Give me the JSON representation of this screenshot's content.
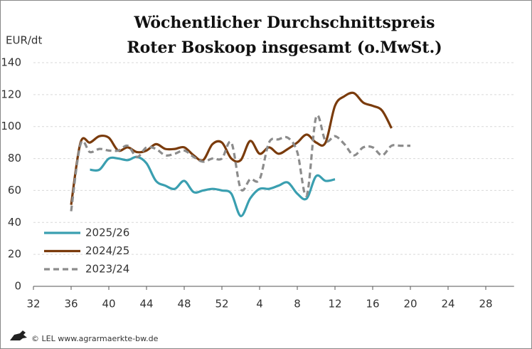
{
  "chart_data": {
    "type": "line",
    "title": [
      "Wöchentlicher Durchschnittspreis",
      "Roter Boskoop insgesamt (o.MwSt.)"
    ],
    "y_label": "EUR/dt",
    "source": "© LEL www.agrarmaerkte-bw.de",
    "categories": [
      "32",
      null,
      null,
      null,
      "36",
      null,
      null,
      null,
      "40",
      null,
      null,
      null,
      "44",
      null,
      null,
      null,
      "48",
      null,
      null,
      null,
      "52",
      null,
      null,
      null,
      "4",
      null,
      null,
      null,
      "8",
      null,
      null,
      null,
      "12",
      null,
      null,
      null,
      "16",
      null,
      null,
      null,
      "20",
      null,
      null,
      null,
      "24",
      null,
      null,
      null,
      "28",
      null,
      null,
      null
    ],
    "series": [
      {
        "name": "2025/26",
        "color": "#3a9fb0",
        "dashed": false,
        "values": [
          null,
          null,
          null,
          null,
          null,
          null,
          73,
          73,
          80,
          80,
          79,
          81,
          77,
          66,
          63,
          61,
          66,
          59,
          60,
          61,
          60,
          58,
          44,
          55,
          61,
          61,
          63,
          65,
          58,
          55,
          69,
          66,
          67,
          null,
          null,
          null,
          null,
          null,
          null,
          null,
          null,
          null,
          null,
          null,
          null,
          null,
          null,
          null,
          null,
          null,
          null,
          null
        ]
      },
      {
        "name": "2024/25",
        "color": "#7a3b0c",
        "dashed": false,
        "values": [
          null,
          null,
          null,
          null,
          51,
          90,
          90,
          94,
          93,
          85,
          87,
          84,
          85,
          89,
          86,
          86,
          87,
          82,
          79,
          89,
          90,
          80,
          79,
          91,
          83,
          87,
          83,
          86,
          90,
          95,
          90,
          90,
          113,
          119,
          121,
          115,
          113,
          110,
          99,
          null,
          null,
          null,
          null,
          null,
          null,
          null,
          null,
          null,
          null,
          null,
          null,
          null
        ]
      },
      {
        "name": "2023/24",
        "color": "#8c8c8c",
        "dashed": true,
        "values": [
          null,
          null,
          null,
          null,
          47,
          89,
          84,
          86,
          85,
          85,
          88,
          81,
          87,
          86,
          82,
          83,
          85,
          81,
          78,
          80,
          80,
          90,
          61,
          67,
          67,
          90,
          92,
          93,
          84,
          57,
          106,
          91,
          94,
          89,
          82,
          87,
          87,
          82,
          88,
          88,
          88,
          null,
          null,
          null,
          null,
          null,
          null,
          null,
          null,
          null,
          null,
          null
        ]
      }
    ],
    "ylim": [
      0,
      140
    ],
    "yticks": [
      0,
      20,
      40,
      60,
      80,
      100,
      120,
      140
    ],
    "grid": true
  }
}
